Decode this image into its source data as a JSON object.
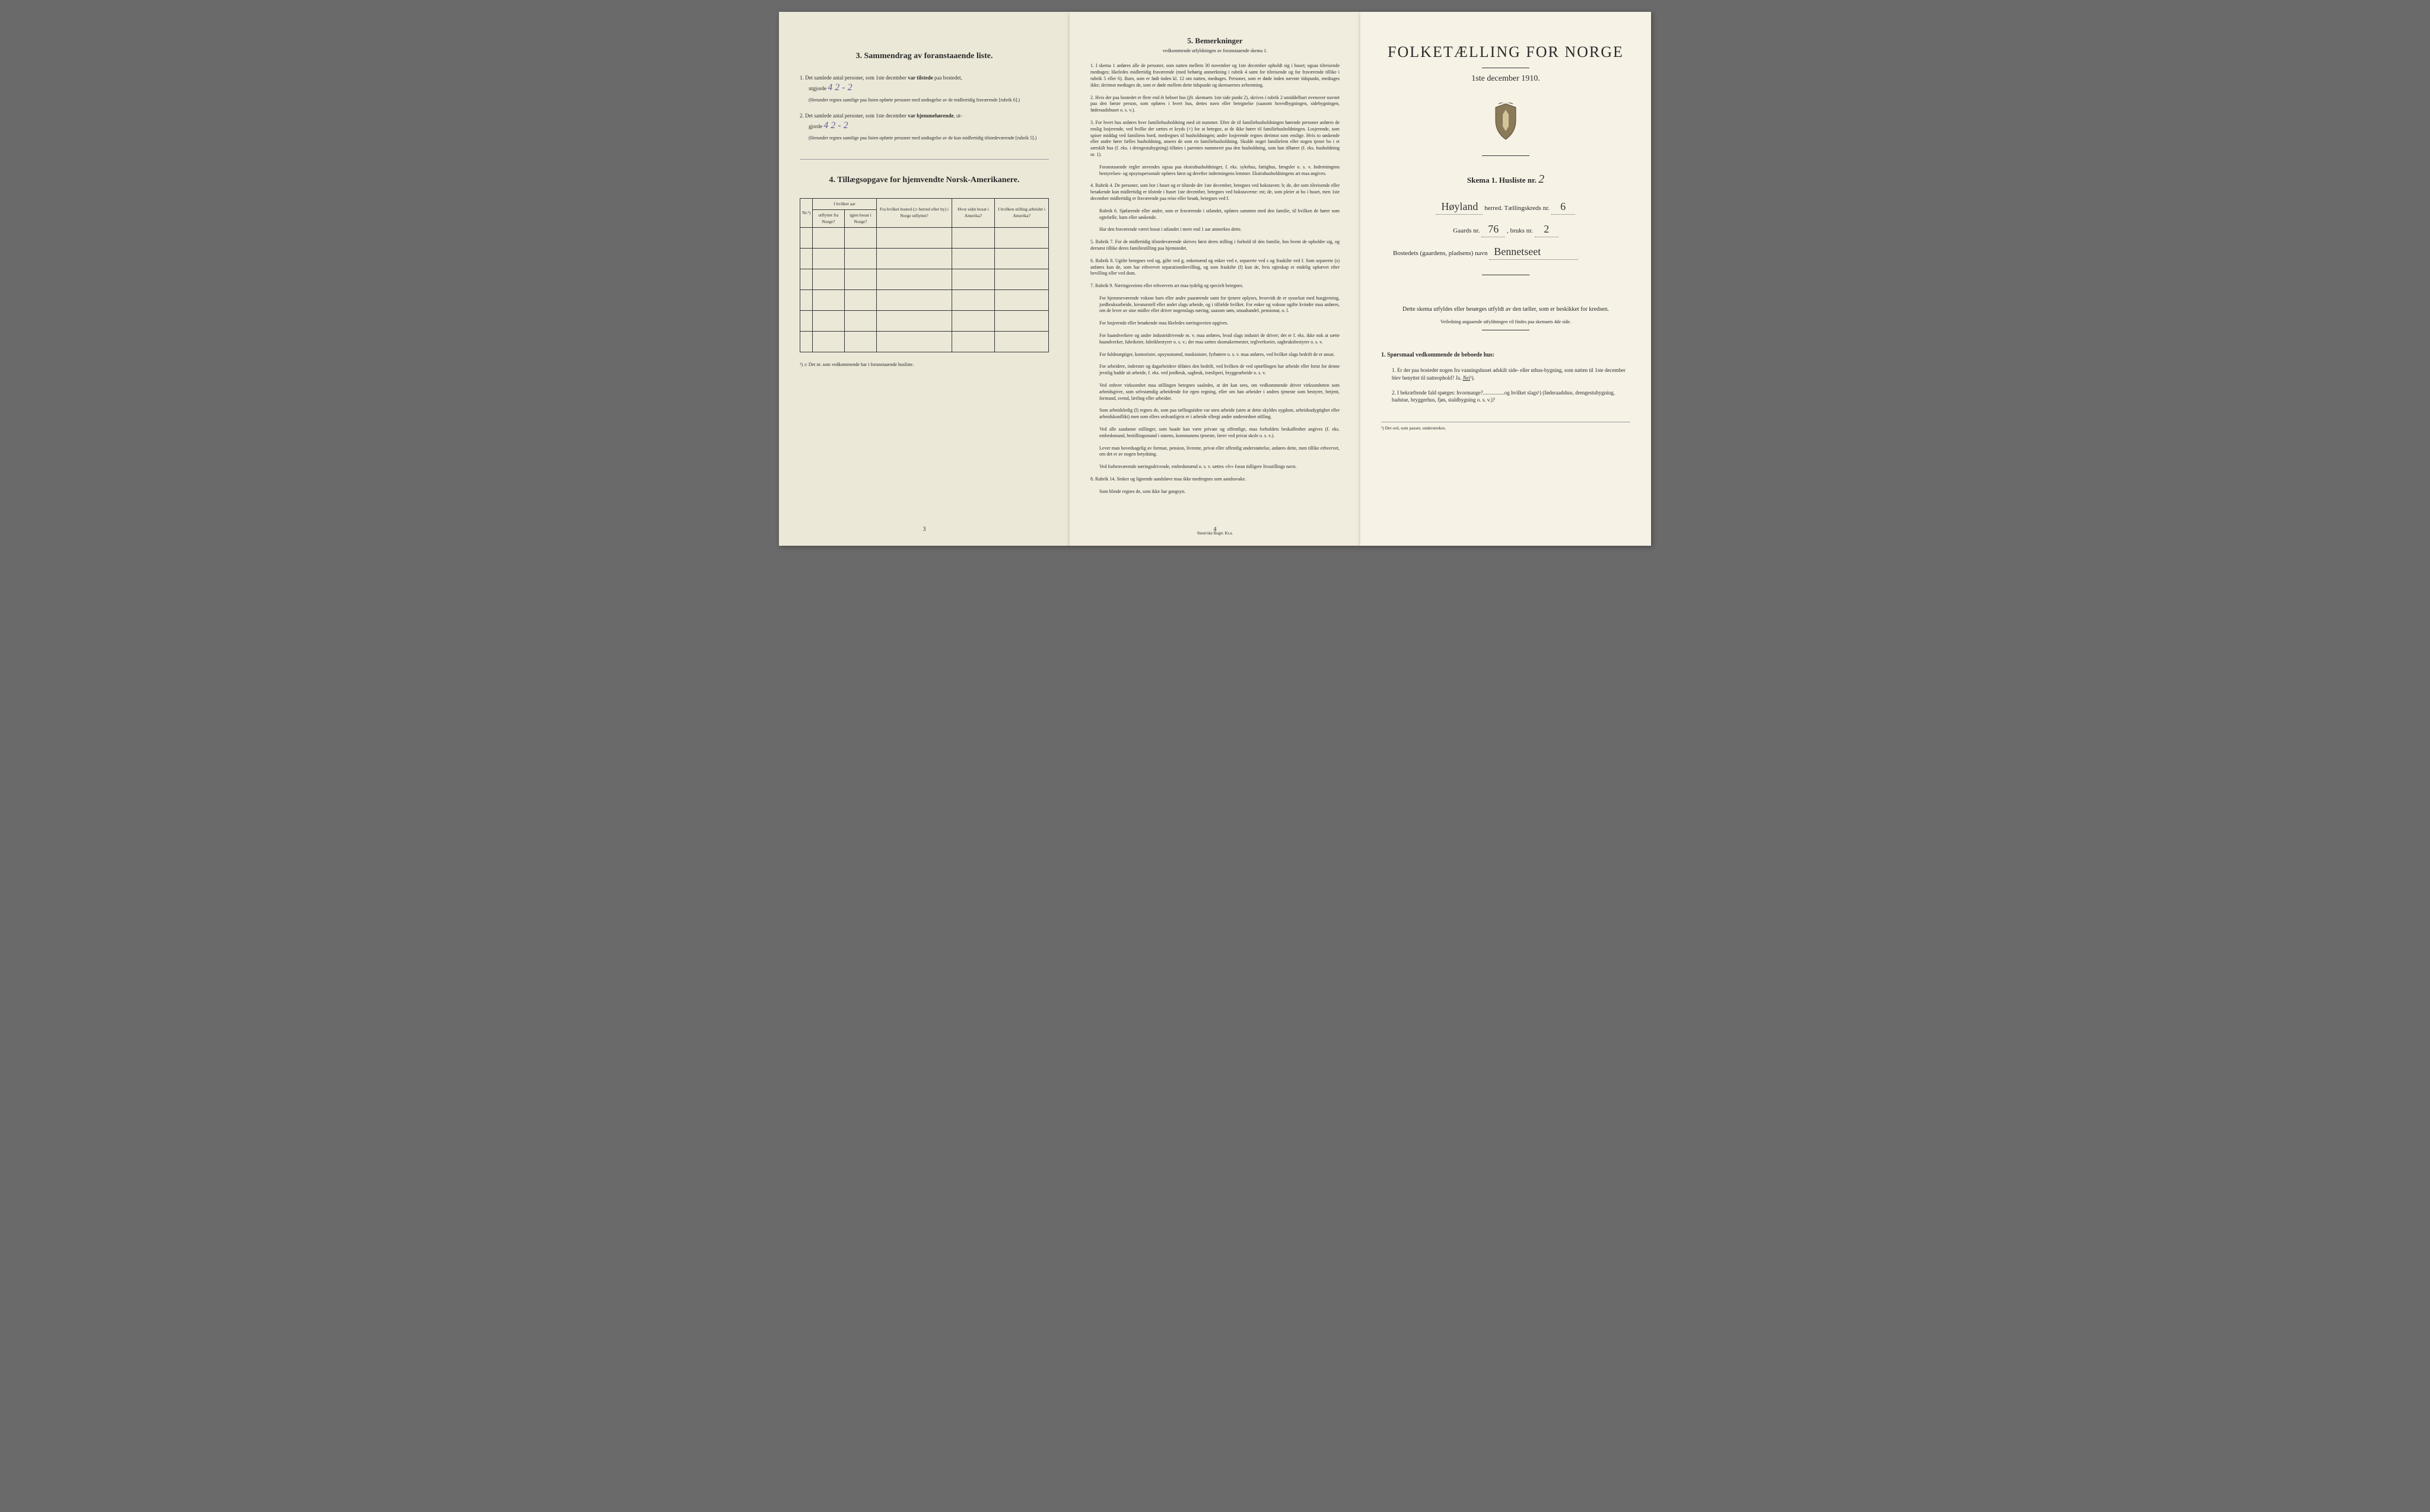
{
  "page1": {
    "section3_title": "3.   Sammendrag av foranstaaende liste.",
    "item1_text": "1.  Det samlede antal personer, som 1ste december ",
    "item1_bold": "var tilstede",
    "item1_text2": " paa bostedet,",
    "item1_utgjorde": "utgjorde",
    "item1_handwritten": "4    2 - 2",
    "item1_note": "(Herunder regnes samtlige paa listen opførte personer med undtagelse av de midlertidig fraværende [rubrik 6].)",
    "item2_text": "2.  Det samlede antal personer, som 1ste december ",
    "item2_bold": "var hjemmehørende",
    "item2_text2": ", ut-",
    "item2_gjorde": "gjorde",
    "item2_handwritten": "4    2 - 2",
    "item2_note": "(Herunder regnes samtlige paa listen opførte personer med undtagelse av de kun midlertidig tilstedeværende [rubrik 5].)",
    "section4_title": "4.   Tillægsopgave for hjemvendte Norsk-Amerikanere.",
    "table_headers": {
      "col1": "Nr.¹)",
      "col2a": "I hvilket aar",
      "col2b": "utflyttet fra Norge?",
      "col2c": "igjen bosat i Norge?",
      "col3": "Fra hvilket bosted (ɔ: herred eller by) i Norge utflyttet?",
      "col4": "Hvor sidst bosat i Amerika?",
      "col5": "I hvilken stilling arbeidet i Amerika?"
    },
    "footnote": "¹) ɔ: Det nr. som vedkommende har i foranstaaende husliste.",
    "page_num": "3"
  },
  "page2": {
    "title": "5.   Bemerkninger",
    "subtitle": "vedkommende utfyldningen av foranstaaende skema 1.",
    "items": [
      "1.  I skema 1 anføres alle de personer, som natten mellem 30 november og 1ste december opholdt sig i huset; ogsaa tilreisende medtages; likeledes midlertidig fraværende (med behørig anmerkning i rubrik 4 samt for tilreisende og for fraværende tillike i rubrik 5 eller 6). Barn, som er født inden kl. 12 om natten, medtages. Personer, som er døde inden nævnte tidspunkt, medtages ikke; derimot medtages de, som er døde mellem dette tidspunkt og skemaernes avhentning.",
      "2.  Hvis der paa bostedet er flere end ét beboet hus (jfr. skemaets 1ste side punkt 2), skrives i rubrik 2 umiddelbart ovenover navnet paa den første person, som opføres i hvert hus, dettes navn eller betegnelse (saasom hovedbygningen, sidebygningen, føderaadshuset o. s. v.).",
      "3.  For hvert hus anføres hver familiehusholdning med sit nummer. Efter de til familiehusholdningen hørende personer anføres de enslig losjerende, ved hvilke der sættes et kryds (×) for at betegne, at de ikke hører til familiehusholdningen. Losjerende, som spiser middag ved familiens bord, medregnes til husholdningen; andre losjerende regnes derimot som enslige. Hvis to søskende eller andre fører fælles husholdning, ansees de som en familiehusholdning. Skulde noget familielem eller nogen tjener bo i et særskilt hus (f. eks. i drengestubygning) tilføies i parentes nummeret paa den husholdning, som han tilhører (f. eks. husholdning nr. 1).",
      "    Foranstaaende regler anvendes ogsaa paa ekstrahusholdninger, f. eks. sykehus, fattighus, fængsler o. s. v. Indretningens bestyrelses- og opsynspersonale opføres først og derefter indretningens lemmer. Ekstrahusholdningens art maa angives.",
      "4.  Rubrik 4. De personer, som bor i huset og er tilstede der 1ste december, betegnes ved bokstaven: b; de, der som tilreisende eller besøkende kun midlertidig er tilstede i huset 1ste december, betegnes ved bokstaverne: mt; de, som pleier at bo i huset, men 1ste december midlertidig er fraværende paa reise eller besøk, betegnes ved f.",
      "    Rubrik 6. Sjøfarende eller andre, som er fraværende i utlandet, opføres sammen med den familie, til hvilken de hører som egtefælle, barn eller søskende.",
      "    Har den fraværende været bosat i utlandet i mere end 1 aar anmerkes dette.",
      "5.  Rubrik 7. For de midlertidig tilstedeværende skrives først deres stilling i forhold til den familie, hos hvem de opholder sig, og dernæst tillike deres familiestilling paa hjemstedet.",
      "6.  Rubrik 8. Ugifte betegnes ved ug, gifte ved g, enkemænd og enker ved e, separerte ved s og fraskilte ved f. Som separerte (s) anføres kun de, som har erhvervet separationsbevilling, og som fraskilte (f) kun de, hvis egteskap er endelig ophævet efter bevilling eller ved dom.",
      "7.  Rubrik 9. Næringsveiens eller erhvervets art maa tydelig og specielt betegnes.",
      "    For hjemmeværende voksne barn eller andre paarørende samt for tjenere oplyses, hvorvidt de er sysselsat med husgjerning, jordbruksarbeide, kreaturstell eller andet slags arbeide, og i tilfælde hvilket. For enker og voksne ugifte kvinder maa anføres, om de lever av sine midler eller driver nogenslags næring, saasom søm, smaahandel, pensionat, o. l.",
      "    For losjerende eller besøkende maa likeledes næringsveien opgives.",
      "    For haandverkere og andre industridrivende m. v. maa anføres, hvad slags industri de driver; det er f. eks. ikke nok at sætte haandverker, fabrikeier, fabrikbestyrer o. s. v.; der maa sættes skomakermester, teglverkseier, sagbruksbestyrer o. s. v.",
      "    For fuldmægtiger, kontorister, opsynsmænd, maskinister, fyrbøtere o. s. v. maa anføres, ved hvilket slags bedrift de er ansat.",
      "    For arbeidere, inderster og dagarbeidere tilføies den bedrift, ved hvilken de ved optællingen har arbeide eller forut for denne jevnlig hadde sit arbeide, f. eks. ved jordbruk, sagbruk, træsliperi, bryggearbeide o. s. v.",
      "    Ved enhver virksomhet maa stillingen betegnes saaledes, at det kan sees, om vedkommende driver virksomheten som arbeidsgiver, som selvstændig arbeidende for egen regning, eller om han arbeider i andres tjeneste som bestyrer, betjent, formand, svend, lærling eller arbeider.",
      "    Som arbeidsledig (l) regnes de, som paa tællingstiden var uten arbeide (uten at dette skyldes sygdom, arbeidsudygtighet eller arbeidskonflikt) men som ellers sedvanligvis er i arbeide ellergi ander underordnet stilling.",
      "    Ved alle saadanne stillinger, som baade kan være private og offentlige, maa forholdets beskaffenhet angives (f. eks. embedsmand, bestillingsmand i statens, kommunens tjeneste, lærer ved privat skole o. s. v.).",
      "    Lever man hovedsagelig av formue, pension, livrente, privat eller offentlig understøttelse, anføres dette, men tillike erhvervet, om det er av nogen betydning.",
      "    Ved forhenværende næringsdrivende, embedsmænd o. s. v. sættes «fv» foran tidligere livsstillings navn.",
      "8.  Rubrik 14. Sinker og lignende aandsløve maa ikke medregnes som aandssvake.",
      "    Som blinde regnes de, som ikke har gangsyn."
    ],
    "page_num": "4",
    "publisher": "Steen'ske Bogtr.   Kr.a."
  },
  "page3": {
    "main_title": "FOLKETÆLLING FOR NORGE",
    "sub_title": "1ste december 1910.",
    "skema_label": "Skema 1.   Husliste nr.",
    "skema_hw": "2",
    "herred_hw": "Høyland",
    "herred_label": "herred.  Tællingskreds nr.",
    "kreds_hw": "6",
    "gaards_label": "Gaards nr.",
    "gaards_hw": "76",
    "bruks_label": ", bruks nr.",
    "bruks_hw": "2",
    "bosted_label": "Bostedets (gaardens, pladsens) navn",
    "bosted_hw": "Bennetseet",
    "instructions": "Dette skema utfyldes eller besørges utfyldt av den tæller, som er beskikket for kredsen.",
    "instructions_sub": "Veiledning angaaende utfyldningen vil findes paa skemaets 4de side.",
    "q_title": "1.  Spørsmaal vedkommende de beboede hus:",
    "q1": "1.  Er der paa bostedet nogen fra vaaningshuset adskilt side- eller uthus-bygning, som natten til 1ste december blev benyttet til natteophold?   Ja.   ",
    "q1_nei": "Nei",
    "q1_sup": "¹).",
    "q2": "2.  I bekræftende fald spørges: hvormange?................og hvilket slags¹) (føderaadshus, drengestubygning, badstue, bryggerhus, fjøs, staldbygning o. s. v.)?",
    "bottom_footnote": "¹) Det ord, som passer, understrekes."
  }
}
